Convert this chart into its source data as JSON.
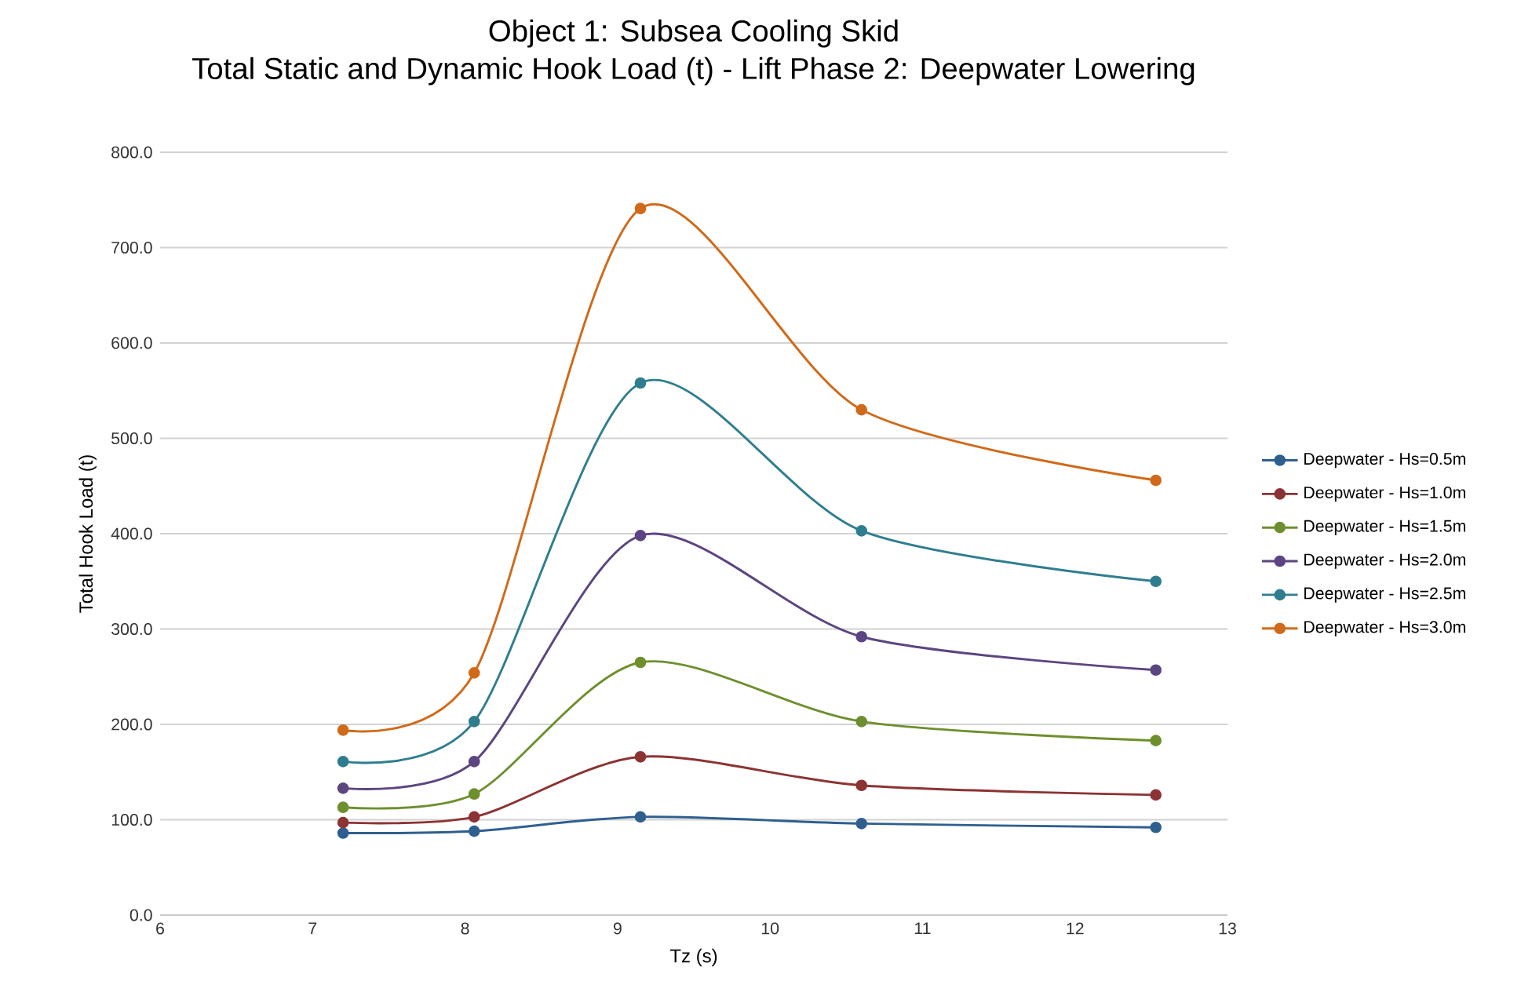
{
  "chart_data": {
    "type": "line",
    "title": "Object 1: Subsea Cooling Skid",
    "subtitle": "Total Static and Dynamic Hook Load (t) - Lift Phase 2: Deepwater Lowering",
    "xlabel": "Tz (s)",
    "ylabel": "Total Hook Load (t)",
    "x": [
      7.2,
      8.06,
      9.15,
      10.6,
      12.53
    ],
    "series": [
      {
        "name": "Deepwater - Hs=0.5m",
        "color": "#2f5f8f",
        "values": [
          86,
          88,
          103,
          96,
          92
        ]
      },
      {
        "name": "Deepwater - Hs=1.0m",
        "color": "#8c3333",
        "values": [
          97,
          103,
          166,
          136,
          126
        ]
      },
      {
        "name": "Deepwater - Hs=1.5m",
        "color": "#6e8f2e",
        "values": [
          113,
          127,
          265,
          203,
          183
        ]
      },
      {
        "name": "Deepwater - Hs=2.0m",
        "color": "#5c4580",
        "values": [
          133,
          161,
          398,
          292,
          257
        ]
      },
      {
        "name": "Deepwater - Hs=2.5m",
        "color": "#2f7e8f",
        "values": [
          161,
          203,
          558,
          403,
          350
        ]
      },
      {
        "name": "Deepwater - Hs=3.0m",
        "color": "#d06a1a",
        "values": [
          194,
          254,
          741,
          530,
          456
        ]
      }
    ],
    "xlim": [
      6,
      13
    ],
    "xticks": [
      6,
      7,
      8,
      9,
      10,
      11,
      12,
      13
    ],
    "ylim": [
      0,
      800
    ],
    "yticks": [
      {
        "value": 0,
        "label": "0.0"
      },
      {
        "value": 100,
        "label": "100.0"
      },
      {
        "value": 200,
        "label": "200.0"
      },
      {
        "value": 300,
        "label": "300.0"
      },
      {
        "value": 400,
        "label": "400.0"
      },
      {
        "value": 500,
        "label": "500.0"
      },
      {
        "value": 600,
        "label": "600.0"
      },
      {
        "value": 700,
        "label": "700.0"
      },
      {
        "value": 800,
        "label": "800.0"
      }
    ],
    "grid": "y",
    "legend": "right",
    "marker": "circle",
    "line_style": "solid"
  }
}
